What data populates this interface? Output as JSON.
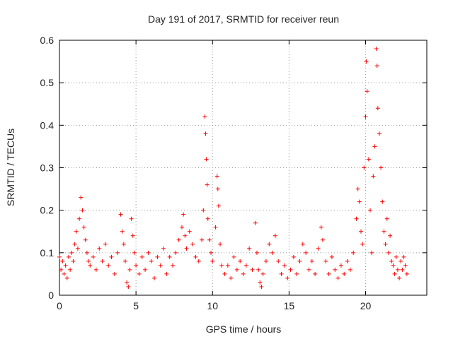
{
  "chart_data": {
    "type": "scatter",
    "title": "Day 191 of 2017, SRMTID for receiver reun",
    "xlabel": "GPS time / hours",
    "ylabel": "SRMTID / TECUs",
    "xlim": [
      0,
      24
    ],
    "ylim": [
      0,
      0.6
    ],
    "xticks": [
      "0",
      "5",
      "10",
      "15",
      "20"
    ],
    "yticks": [
      "0",
      "0.1",
      "0.2",
      "0.3",
      "0.4",
      "0.5",
      "0.6"
    ],
    "grid": true,
    "marker": "+",
    "color": "#ff0000",
    "series": [
      {
        "name": "SRMTID",
        "points": [
          [
            0.0,
            0.09
          ],
          [
            0.1,
            0.06
          ],
          [
            0.2,
            0.08
          ],
          [
            0.3,
            0.05
          ],
          [
            0.4,
            0.07
          ],
          [
            0.5,
            0.04
          ],
          [
            0.6,
            0.09
          ],
          [
            0.7,
            0.06
          ],
          [
            0.8,
            0.1
          ],
          [
            0.9,
            0.08
          ],
          [
            1.0,
            0.12
          ],
          [
            1.1,
            0.15
          ],
          [
            1.2,
            0.11
          ],
          [
            1.3,
            0.18
          ],
          [
            1.4,
            0.23
          ],
          [
            1.5,
            0.2
          ],
          [
            1.6,
            0.16
          ],
          [
            1.7,
            0.13
          ],
          [
            1.8,
            0.1
          ],
          [
            1.9,
            0.08
          ],
          [
            2.0,
            0.07
          ],
          [
            2.2,
            0.09
          ],
          [
            2.4,
            0.06
          ],
          [
            2.6,
            0.11
          ],
          [
            2.8,
            0.08
          ],
          [
            3.0,
            0.12
          ],
          [
            3.2,
            0.07
          ],
          [
            3.4,
            0.09
          ],
          [
            3.6,
            0.05
          ],
          [
            3.8,
            0.1
          ],
          [
            4.0,
            0.19
          ],
          [
            4.1,
            0.15
          ],
          [
            4.2,
            0.12
          ],
          [
            4.3,
            0.08
          ],
          [
            4.4,
            0.03
          ],
          [
            4.5,
            0.02
          ],
          [
            4.6,
            0.06
          ],
          [
            4.7,
            0.18
          ],
          [
            4.8,
            0.14
          ],
          [
            4.9,
            0.1
          ],
          [
            5.0,
            0.07
          ],
          [
            5.2,
            0.05
          ],
          [
            5.4,
            0.09
          ],
          [
            5.6,
            0.06
          ],
          [
            5.8,
            0.1
          ],
          [
            6.0,
            0.08
          ],
          [
            6.2,
            0.04
          ],
          [
            6.4,
            0.09
          ],
          [
            6.6,
            0.07
          ],
          [
            6.8,
            0.11
          ],
          [
            7.0,
            0.05
          ],
          [
            7.2,
            0.09
          ],
          [
            7.4,
            0.07
          ],
          [
            7.6,
            0.1
          ],
          [
            7.8,
            0.13
          ],
          [
            8.0,
            0.16
          ],
          [
            8.1,
            0.19
          ],
          [
            8.2,
            0.14
          ],
          [
            8.3,
            0.11
          ],
          [
            8.5,
            0.15
          ],
          [
            8.7,
            0.12
          ],
          [
            8.9,
            0.09
          ],
          [
            9.1,
            0.08
          ],
          [
            9.3,
            0.13
          ],
          [
            9.4,
            0.2
          ],
          [
            9.5,
            0.42
          ],
          [
            9.55,
            0.38
          ],
          [
            9.6,
            0.32
          ],
          [
            9.65,
            0.26
          ],
          [
            9.7,
            0.18
          ],
          [
            9.8,
            0.13
          ],
          [
            9.9,
            0.1
          ],
          [
            10.0,
            0.08
          ],
          [
            10.2,
            0.16
          ],
          [
            10.3,
            0.28
          ],
          [
            10.35,
            0.25
          ],
          [
            10.4,
            0.21
          ],
          [
            10.5,
            0.12
          ],
          [
            10.6,
            0.07
          ],
          [
            10.8,
            0.05
          ],
          [
            11.0,
            0.07
          ],
          [
            11.2,
            0.04
          ],
          [
            11.4,
            0.09
          ],
          [
            11.6,
            0.06
          ],
          [
            11.8,
            0.08
          ],
          [
            12.0,
            0.05
          ],
          [
            12.2,
            0.07
          ],
          [
            12.4,
            0.11
          ],
          [
            12.6,
            0.06
          ],
          [
            12.8,
            0.17
          ],
          [
            12.9,
            0.1
          ],
          [
            13.0,
            0.06
          ],
          [
            13.1,
            0.03
          ],
          [
            13.2,
            0.02
          ],
          [
            13.3,
            0.05
          ],
          [
            13.5,
            0.08
          ],
          [
            13.7,
            0.12
          ],
          [
            13.9,
            0.1
          ],
          [
            14.1,
            0.14
          ],
          [
            14.3,
            0.08
          ],
          [
            14.5,
            0.05
          ],
          [
            14.7,
            0.07
          ],
          [
            14.9,
            0.04
          ],
          [
            15.1,
            0.06
          ],
          [
            15.3,
            0.09
          ],
          [
            15.5,
            0.05
          ],
          [
            15.7,
            0.08
          ],
          [
            15.9,
            0.12
          ],
          [
            16.1,
            0.1
          ],
          [
            16.3,
            0.06
          ],
          [
            16.5,
            0.08
          ],
          [
            16.7,
            0.05
          ],
          [
            16.9,
            0.11
          ],
          [
            17.1,
            0.16
          ],
          [
            17.2,
            0.13
          ],
          [
            17.4,
            0.08
          ],
          [
            17.6,
            0.05
          ],
          [
            17.8,
            0.09
          ],
          [
            18.0,
            0.06
          ],
          [
            18.2,
            0.04
          ],
          [
            18.4,
            0.07
          ],
          [
            18.6,
            0.05
          ],
          [
            18.8,
            0.08
          ],
          [
            19.0,
            0.06
          ],
          [
            19.2,
            0.1
          ],
          [
            19.4,
            0.18
          ],
          [
            19.5,
            0.25
          ],
          [
            19.6,
            0.22
          ],
          [
            19.7,
            0.15
          ],
          [
            19.8,
            0.12
          ],
          [
            19.9,
            0.3
          ],
          [
            20.0,
            0.42
          ],
          [
            20.05,
            0.55
          ],
          [
            20.1,
            0.48
          ],
          [
            20.2,
            0.32
          ],
          [
            20.3,
            0.2
          ],
          [
            20.4,
            0.1
          ],
          [
            20.5,
            0.28
          ],
          [
            20.6,
            0.35
          ],
          [
            20.7,
            0.58
          ],
          [
            20.75,
            0.54
          ],
          [
            20.8,
            0.44
          ],
          [
            20.9,
            0.38
          ],
          [
            21.0,
            0.3
          ],
          [
            21.1,
            0.22
          ],
          [
            21.2,
            0.15
          ],
          [
            21.3,
            0.12
          ],
          [
            21.4,
            0.18
          ],
          [
            21.5,
            0.1
          ],
          [
            21.6,
            0.14
          ],
          [
            21.7,
            0.08
          ],
          [
            21.8,
            0.07
          ],
          [
            21.9,
            0.05
          ],
          [
            22.0,
            0.09
          ],
          [
            22.1,
            0.06
          ],
          [
            22.2,
            0.04
          ],
          [
            22.3,
            0.08
          ],
          [
            22.4,
            0.06
          ],
          [
            22.5,
            0.09
          ],
          [
            22.6,
            0.07
          ],
          [
            22.7,
            0.05
          ]
        ]
      }
    ]
  }
}
